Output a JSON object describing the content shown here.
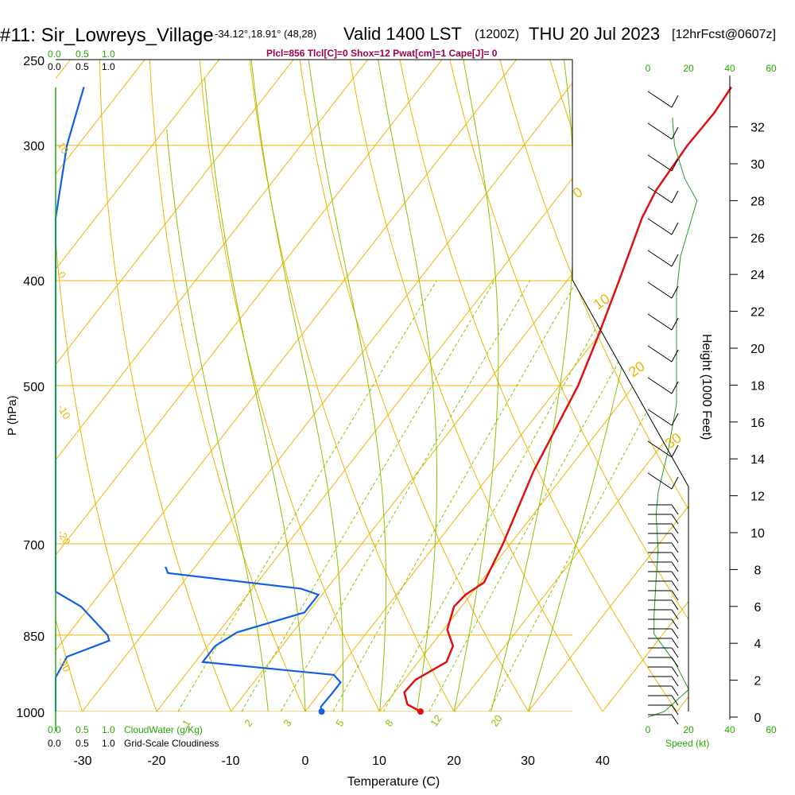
{
  "header": {
    "station": "#11: Sir_Lowreys_Village",
    "coords": "-34.12°,18.91° (48,28)",
    "valid": "Valid 1400 LST",
    "utc": "(1200Z)",
    "date": "THU 20 Jul 2023",
    "fcst": "[12hrFcst@0607z]",
    "params": "Plcl=856 Tlcl[C]=0 Shox=12 Pwat[cm]=1 Cape[J]= 0"
  },
  "colors": {
    "isotherm": "#f0b400",
    "dry_adiabat": "#f0b400",
    "moist_adiabat": "#88c400",
    "mixing_ratio": "#88c400",
    "temperature": "#e01010",
    "cloud": "#1060e0",
    "wind_speed": "#20a020",
    "params": "#a0004a",
    "green_labels": "#22aa00"
  },
  "chart_data": {
    "type": "line",
    "y_axis_label": "P (hPa)",
    "x_axis_label": "Temperature (C)",
    "right_axis_label": "Height (1000 Feet)",
    "pressure_ticks": [
      "250",
      "300",
      "400",
      "500",
      "700",
      "850",
      "1000"
    ],
    "temperature_ticks": [
      "-30",
      "-20",
      "-10",
      "0",
      "10",
      "20",
      "30",
      "40"
    ],
    "height_ticks": [
      "0",
      "2",
      "4",
      "6",
      "8",
      "10",
      "12",
      "14",
      "16",
      "18",
      "20",
      "22",
      "24",
      "26",
      "28",
      "30",
      "32"
    ],
    "cloud_scale_ticks": [
      "0.0",
      "0.5",
      "1.0"
    ],
    "cloud_water_label": "CloudWater (g/Kg)",
    "cloudiness_label": "Grid-Scale Cloudiness",
    "speed_ticks": [
      "0",
      "20",
      "40",
      "60"
    ],
    "speed_label": "Speed (kt)",
    "mixing_ratio_labels": [
      "1",
      "2",
      "3",
      "5",
      "8",
      "12",
      "20"
    ],
    "dry_adiabat_labels": [
      "10",
      "0",
      "-10",
      "-20",
      "-30"
    ],
    "right_theta_labels": [
      "0",
      "10",
      "20",
      "30"
    ],
    "temperature_profile": [
      {
        "p": 1000,
        "t": 15.5
      },
      {
        "p": 985,
        "t": 13.0
      },
      {
        "p": 960,
        "t": 11.3
      },
      {
        "p": 935,
        "t": 11.5
      },
      {
        "p": 900,
        "t": 13.8
      },
      {
        "p": 870,
        "t": 13.0
      },
      {
        "p": 840,
        "t": 10.5
      },
      {
        "p": 800,
        "t": 9.0
      },
      {
        "p": 780,
        "t": 9.3
      },
      {
        "p": 760,
        "t": 10.5
      },
      {
        "p": 700,
        "t": 9.0
      },
      {
        "p": 600,
        "t": 5.5
      },
      {
        "p": 500,
        "t": 2.5
      },
      {
        "p": 450,
        "t": 0.0
      },
      {
        "p": 400,
        "t": -3.0
      },
      {
        "p": 350,
        "t": -6.5
      },
      {
        "p": 330,
        "t": -7.5
      },
      {
        "p": 300,
        "t": -8.0
      },
      {
        "p": 280,
        "t": -7.8
      },
      {
        "p": 265,
        "t": -8.2
      }
    ],
    "cloudiness_profile": [
      {
        "p": 1000,
        "c": 0.0
      },
      {
        "p": 930,
        "c": 0.0
      },
      {
        "p": 890,
        "c": 0.2
      },
      {
        "p": 860,
        "c": 0.95
      },
      {
        "p": 850,
        "c": 0.92
      },
      {
        "p": 800,
        "c": 0.45
      },
      {
        "p": 775,
        "c": 0.0
      },
      {
        "p": 750,
        "c": 0.0
      },
      {
        "p": 350,
        "c": 0.0
      },
      {
        "p": 300,
        "c": 0.2
      },
      {
        "p": 265,
        "c": 0.5
      }
    ],
    "cloud_water_profile": [
      {
        "p": 1000,
        "t": 2.2
      },
      {
        "p": 990,
        "t": 1.6
      },
      {
        "p": 960,
        "t": 1.7
      },
      {
        "p": 940,
        "t": 1.7
      },
      {
        "p": 925,
        "t": 0.0
      },
      {
        "p": 900,
        "t": -19.0
      },
      {
        "p": 870,
        "t": -19.0
      },
      {
        "p": 845,
        "t": -17.5
      },
      {
        "p": 810,
        "t": -10.5
      },
      {
        "p": 780,
        "t": -10.5
      },
      {
        "p": 770,
        "t": -13.5
      },
      {
        "p": 745,
        "t": -33.0
      },
      {
        "p": 735,
        "t": -34.0
      }
    ],
    "wind_speed_profile": [
      {
        "h": 0,
        "s": 0
      },
      {
        "h": 0.3,
        "s": 8
      },
      {
        "h": 1.5,
        "s": 20
      },
      {
        "h": 3.0,
        "s": 13
      },
      {
        "h": 4.5,
        "s": 3
      },
      {
        "h": 5.5,
        "s": 3
      },
      {
        "h": 7.5,
        "s": 4
      },
      {
        "h": 9.0,
        "s": 5
      },
      {
        "h": 11.0,
        "s": 4
      },
      {
        "h": 12.2,
        "s": 5
      },
      {
        "h": 14.5,
        "s": 10
      },
      {
        "h": 17.0,
        "s": 14
      },
      {
        "h": 20.0,
        "s": 14
      },
      {
        "h": 23.0,
        "s": 14
      },
      {
        "h": 25.0,
        "s": 16
      },
      {
        "h": 26.5,
        "s": 20
      },
      {
        "h": 28.0,
        "s": 24
      },
      {
        "h": 29.2,
        "s": 18
      },
      {
        "h": 31.0,
        "s": 13
      },
      {
        "h": 32.5,
        "s": 12
      }
    ]
  }
}
